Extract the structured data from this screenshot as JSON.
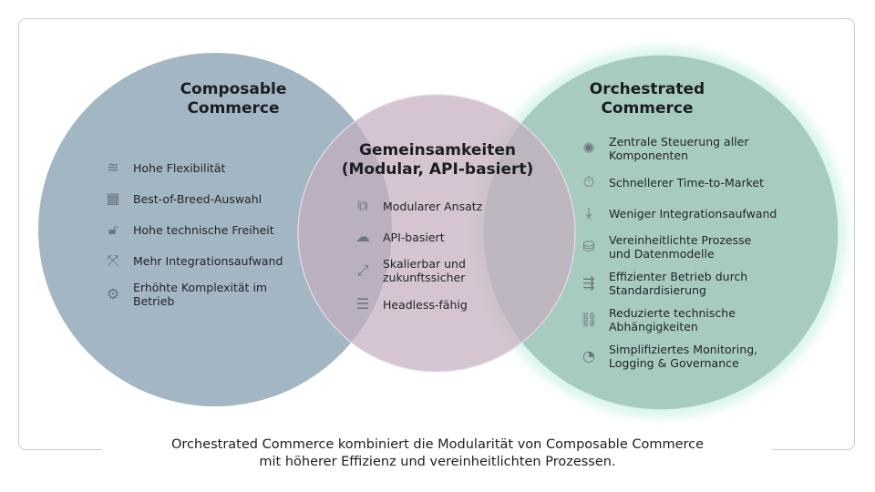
{
  "colors": {
    "composable": "#a3b6c3",
    "common": "#c5adbf",
    "orchestrated": "#a8cbc0",
    "glow": "#bfeee0"
  },
  "composable": {
    "title_line1": "Composable",
    "title_line2": "Commerce",
    "items": [
      {
        "icon": "spring-icon",
        "glyph": "≋",
        "text": "Hohe Flexibilität"
      },
      {
        "icon": "blocks-icon",
        "glyph": "▦",
        "text": "Best-of-Breed-Auswahl"
      },
      {
        "icon": "unlock-icon",
        "glyph": "🔓︎",
        "text": "Hohe technische Freiheit"
      },
      {
        "icon": "branching-arrows-icon",
        "glyph": "⤧",
        "text": "Mehr Integrationsaufwand"
      },
      {
        "icon": "gears-icon",
        "glyph": "⚙",
        "text": "Erhöhte Komplexität im",
        "text2": "Betrieb"
      }
    ]
  },
  "common": {
    "title_line1": "Gemeinsamkeiten",
    "title_line2": "(Modular, API-basiert)",
    "items": [
      {
        "icon": "puzzle-icon",
        "glyph": "⧉",
        "text": "Modularer Ansatz"
      },
      {
        "icon": "cloud-api-icon",
        "glyph": "☁",
        "text": "API-basiert"
      },
      {
        "icon": "expand-arrows-icon",
        "glyph": "⤢",
        "text": "Skalierbar und",
        "text2": "zukunftssicher"
      },
      {
        "icon": "server-icon",
        "glyph": "☰",
        "text": "Headless-fähig"
      }
    ]
  },
  "orchestrated": {
    "title_line1": "Orchestrated",
    "title_line2": "Commerce",
    "items": [
      {
        "icon": "hub-icon",
        "glyph": "✺",
        "text": "Zentrale Steuerung aller",
        "text2": "Komponenten"
      },
      {
        "icon": "stopwatch-icon",
        "glyph": "⏱",
        "text": "Schnellerer Time-to-Market"
      },
      {
        "icon": "integration-down-icon",
        "glyph": "⤓",
        "text": "Weniger Integrationsaufwand"
      },
      {
        "icon": "database-cycle-icon",
        "glyph": "⛁",
        "text": "Vereinheitlichte Prozesse",
        "text2": "und Datenmodelle"
      },
      {
        "icon": "arrows-right-icon",
        "glyph": "⇶",
        "text": "Effizienter Betrieb durch",
        "text2": "Standardisierung"
      },
      {
        "icon": "broken-link-icon",
        "glyph": "⛓",
        "text": "Reduzierte technische",
        "text2": "Abhängigkeiten"
      },
      {
        "icon": "dashboard-icon",
        "glyph": "◔",
        "text": "Simplifiziertes Monitoring,",
        "text2": "Logging & Governance"
      }
    ]
  },
  "caption": {
    "line1": "Orchestrated Commerce kombiniert die Modularität von Composable Commerce",
    "line2": "mit höherer Effizienz und vereinheitlichten Prozessen."
  }
}
